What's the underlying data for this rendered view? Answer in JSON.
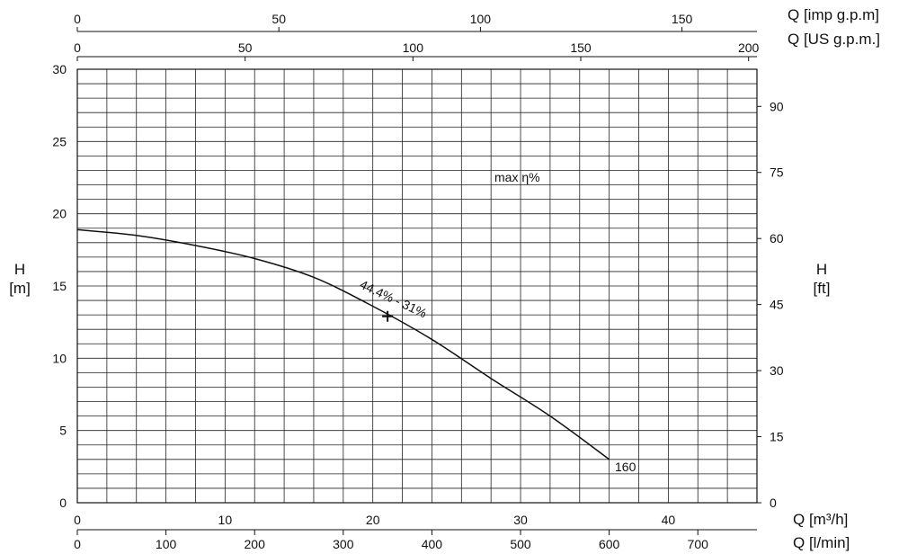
{
  "chart_data": {
    "type": "line",
    "title": "",
    "annotation_max_eff": "max η%",
    "duty_point_label": "44.4% - 31%",
    "curve_label": "160",
    "duty_point": {
      "q_m3h": 21,
      "h_m": 12.9
    },
    "series": [
      {
        "name": "160",
        "q_m3h": [
          0,
          4,
          8,
          12,
          16,
          20,
          24,
          28,
          32,
          36
        ],
        "h_m": [
          18.9,
          18.5,
          17.8,
          16.9,
          15.6,
          13.6,
          11.3,
          8.6,
          6.0,
          3.0
        ]
      }
    ],
    "axes": {
      "left": {
        "label_1": "H",
        "label_2": "[m]",
        "range": [
          0,
          30
        ],
        "ticks": [
          0,
          5,
          10,
          15,
          20,
          25,
          30
        ]
      },
      "right": {
        "label_1": "H",
        "label_2": "[ft]",
        "range": [
          0,
          98.43
        ],
        "ticks": [
          0,
          15,
          30,
          45,
          60,
          75,
          90
        ]
      },
      "bottom_1": {
        "label": "Q [m³/h]",
        "range": [
          0,
          46
        ],
        "ticks": [
          0,
          10,
          20,
          30,
          40
        ]
      },
      "bottom_2": {
        "label": "Q [l/min]",
        "range": [
          0,
          766.7
        ],
        "ticks": [
          0,
          100,
          200,
          300,
          400,
          500,
          600,
          700
        ]
      },
      "top_1": {
        "label": "Q [imp g.p.m]",
        "range": [
          0,
          168.6
        ],
        "ticks": [
          0,
          50,
          100,
          150
        ]
      },
      "top_2": {
        "label": "Q [US g.p.m.]",
        "range": [
          0,
          202.5
        ],
        "ticks": [
          0,
          50,
          100,
          150,
          200
        ]
      }
    },
    "grid": true
  }
}
